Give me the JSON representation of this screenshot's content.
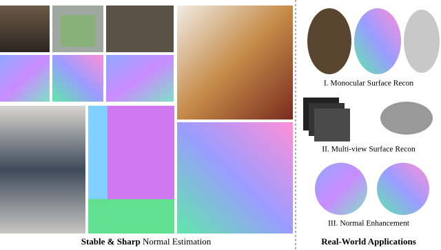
{
  "figure": {
    "left_caption": {
      "bold": "Stable & Sharp",
      "regular": "Normal Estimation"
    },
    "right_captions": [
      "I. Monocular Surface Recon",
      "II. Multi-view Surface Recon",
      "III. Normal Enhancement"
    ],
    "right_title": "Real-World Applications"
  }
}
